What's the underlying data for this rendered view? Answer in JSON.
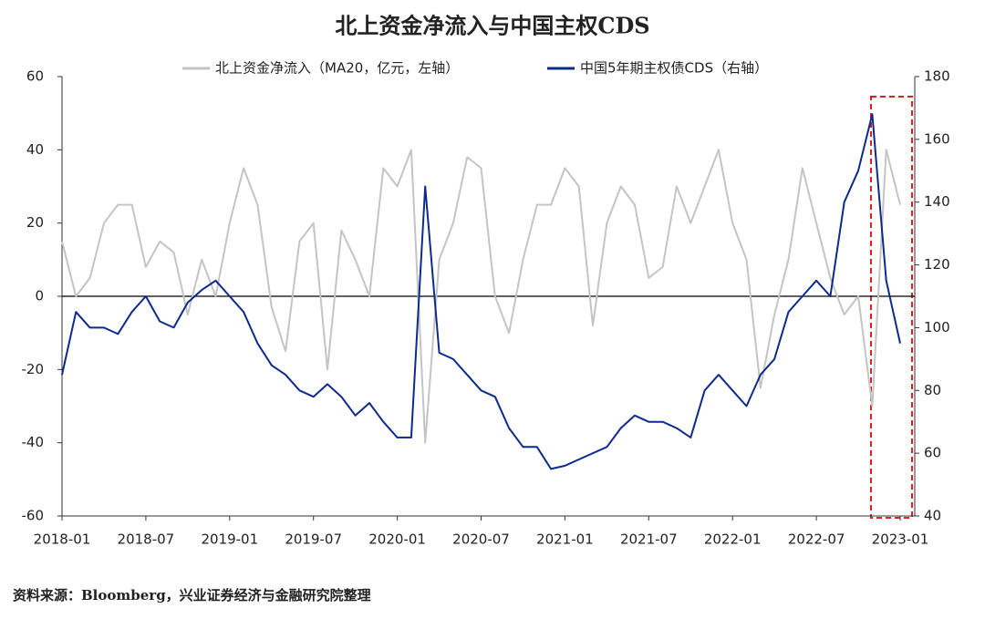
{
  "chart_data": {
    "type": "line",
    "title": "北上资金净流入与中国主权CDS",
    "source": "资料来源：Bloomberg，兴业证券经济与金融研究院整理",
    "x": [
      "2018-01",
      "2018-02",
      "2018-03",
      "2018-04",
      "2018-05",
      "2018-06",
      "2018-07",
      "2018-08",
      "2018-09",
      "2018-10",
      "2018-11",
      "2018-12",
      "2019-01",
      "2019-02",
      "2019-03",
      "2019-04",
      "2019-05",
      "2019-06",
      "2019-07",
      "2019-08",
      "2019-09",
      "2019-10",
      "2019-11",
      "2019-12",
      "2020-01",
      "2020-02",
      "2020-03",
      "2020-04",
      "2020-05",
      "2020-06",
      "2020-07",
      "2020-08",
      "2020-09",
      "2020-10",
      "2020-11",
      "2020-12",
      "2021-01",
      "2021-02",
      "2021-03",
      "2021-04",
      "2021-05",
      "2021-06",
      "2021-07",
      "2021-08",
      "2021-09",
      "2021-10",
      "2021-11",
      "2021-12",
      "2022-01",
      "2022-02",
      "2022-03",
      "2022-04",
      "2022-05",
      "2022-06",
      "2022-07",
      "2022-08",
      "2022-09",
      "2022-10",
      "2022-11",
      "2022-12",
      "2023-01"
    ],
    "xticks": [
      "2018-01",
      "2018-07",
      "2019-01",
      "2019-07",
      "2020-01",
      "2020-07",
      "2021-01",
      "2021-07",
      "2022-01",
      "2022-07",
      "2023-01"
    ],
    "ylim": [
      -60,
      60
    ],
    "yticks": [
      -60,
      -40,
      -20,
      0,
      20,
      40,
      60
    ],
    "y2lim": [
      40,
      180
    ],
    "y2ticks": [
      40,
      60,
      80,
      100,
      120,
      140,
      160,
      180
    ],
    "series": [
      {
        "name": "北上资金净流入（MA20，亿元，左轴）",
        "color": "#c4c4c4",
        "axis": "y",
        "values": [
          15,
          0,
          5,
          20,
          25,
          25,
          8,
          15,
          12,
          -5,
          10,
          0,
          20,
          35,
          25,
          -3,
          -15,
          15,
          20,
          -20,
          18,
          10,
          0,
          35,
          30,
          40,
          -40,
          10,
          20,
          38,
          35,
          0,
          -10,
          10,
          25,
          25,
          35,
          30,
          -8,
          20,
          30,
          25,
          5,
          8,
          30,
          20,
          30,
          40,
          20,
          10,
          -25,
          -5,
          10,
          35,
          20,
          5,
          -5,
          0,
          -30,
          40,
          25
        ]
      },
      {
        "name": "中国5年期主权债CDS（右轴）",
        "color": "#0d2a8c",
        "axis": "y2",
        "values": [
          85,
          105,
          100,
          100,
          98,
          105,
          110,
          102,
          100,
          108,
          112,
          115,
          110,
          105,
          95,
          88,
          85,
          80,
          78,
          82,
          78,
          72,
          76,
          70,
          65,
          65,
          145,
          92,
          90,
          85,
          80,
          78,
          68,
          62,
          62,
          55,
          56,
          58,
          60,
          62,
          68,
          72,
          70,
          70,
          68,
          65,
          80,
          85,
          80,
          75,
          85,
          90,
          105,
          110,
          115,
          110,
          140,
          150,
          168,
          115,
          95
        ]
      }
    ]
  }
}
